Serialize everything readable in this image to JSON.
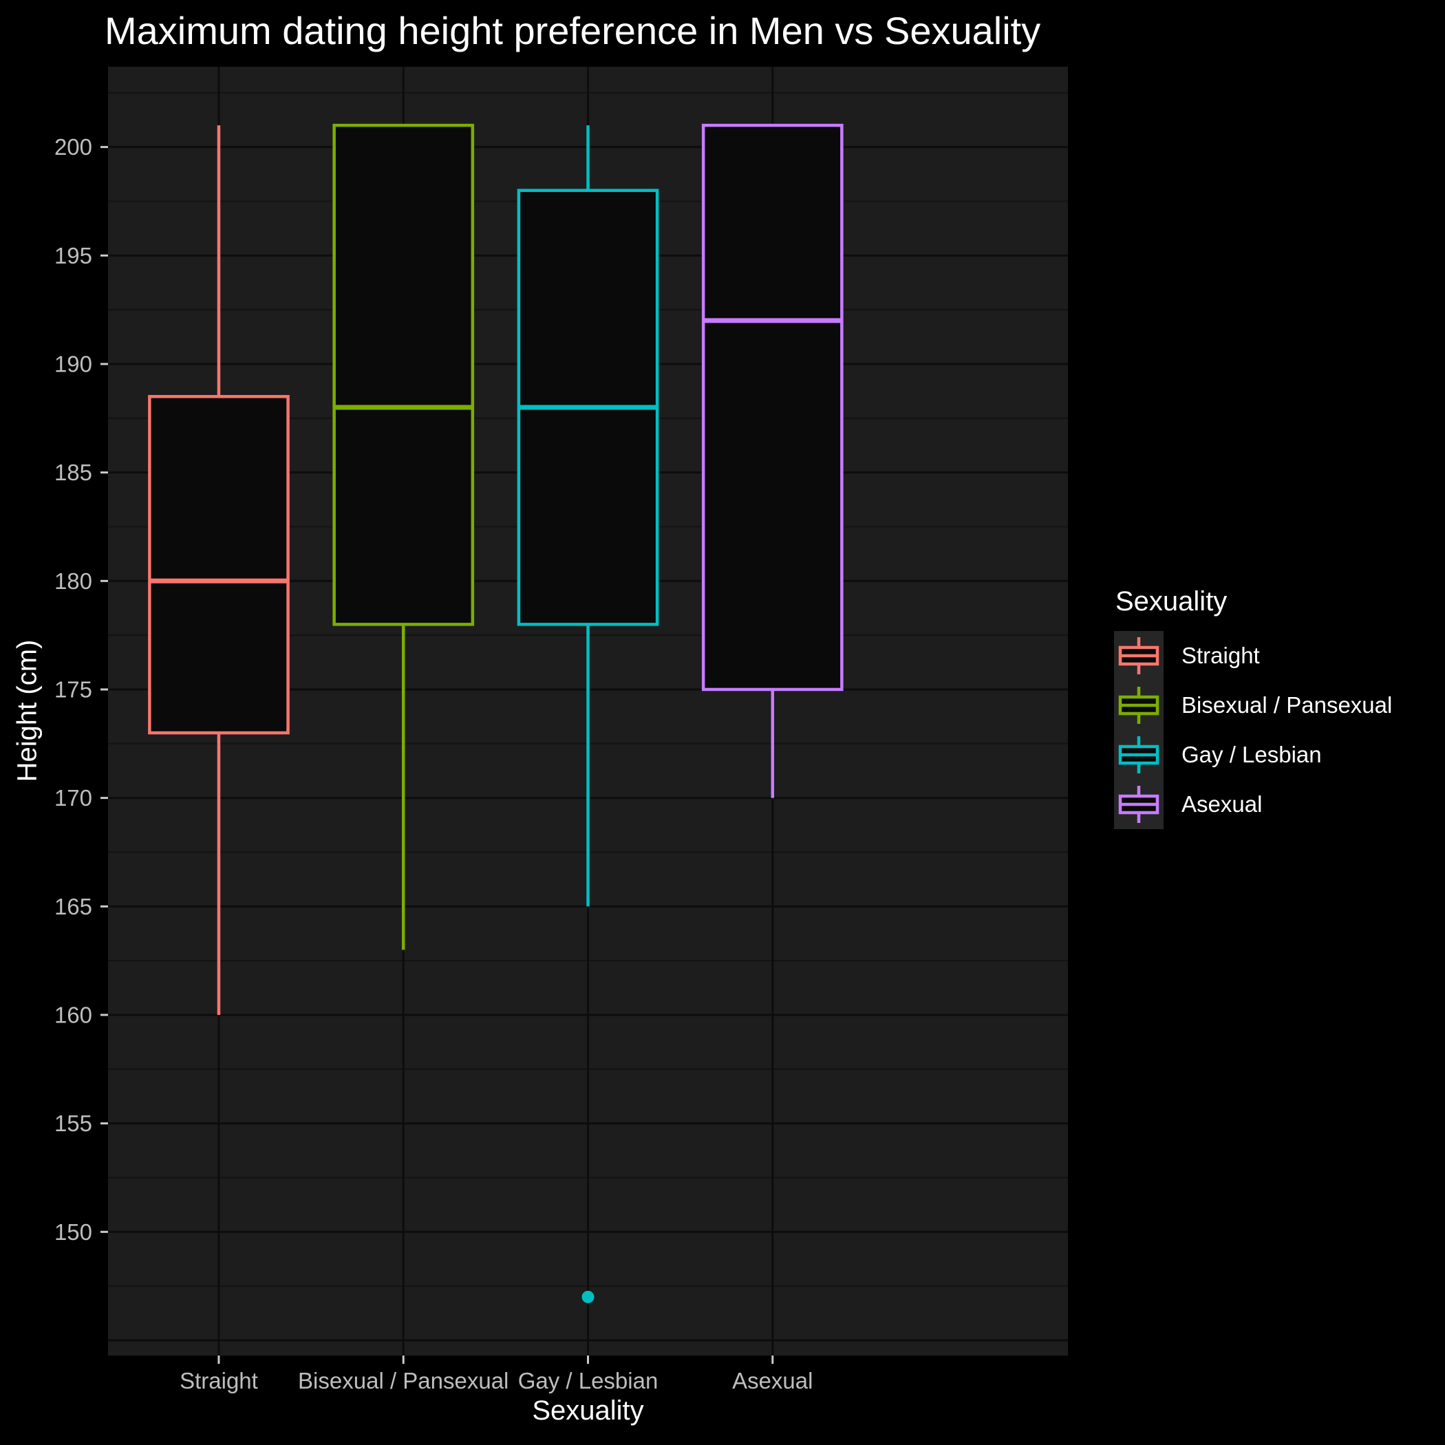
{
  "title": "Maximum dating height preference in Men vs Sexuality",
  "axes": {
    "x": {
      "title": "Sexuality",
      "categories": [
        "Straight",
        "Bisexual / Pansexual",
        "Gay / Lesbian",
        "Asexual"
      ]
    },
    "y": {
      "title": "Height (cm)",
      "ticks": [
        150,
        155,
        160,
        165,
        170,
        175,
        180,
        185,
        190,
        195,
        200
      ],
      "minor_step": 2.5
    }
  },
  "legend": {
    "title": "Sexuality",
    "position": "right"
  },
  "colors": {
    "background": "#000000",
    "panel": "#1D1D1D",
    "grid_major": "#0D0D0D",
    "grid_minor": "#131313",
    "box_fill": "#0A0A0A",
    "axis_text": "#BEBEBE",
    "tick_mark": "#CCCCCC",
    "text": "#FFFFFF",
    "legend_key_bg": "#262626"
  },
  "chart_data": {
    "type": "boxplot",
    "title": "Maximum dating height preference in Men vs Sexuality",
    "xlabel": "Sexuality",
    "ylabel": "Height (cm)",
    "ylim": [
      144.3,
      203.7
    ],
    "grid": true,
    "legend_position": "right",
    "categories": [
      "Straight",
      "Bisexual / Pansexual",
      "Gay / Lesbian",
      "Asexual"
    ],
    "series": [
      {
        "name": "Straight",
        "color": "#F8766D",
        "whisker_low": 160,
        "q1": 173,
        "median": 180,
        "q3": 188.5,
        "whisker_high": 201,
        "outliers": []
      },
      {
        "name": "Bisexual / Pansexual",
        "color": "#7CAE00",
        "whisker_low": 163,
        "q1": 178,
        "median": 188,
        "q3": 201,
        "whisker_high": 201,
        "outliers": []
      },
      {
        "name": "Gay / Lesbian",
        "color": "#00BFC4",
        "whisker_low": 165,
        "q1": 178,
        "median": 188,
        "q3": 198,
        "whisker_high": 201,
        "outliers": [
          147
        ]
      },
      {
        "name": "Asexual",
        "color": "#C77CFF",
        "whisker_low": 170,
        "q1": 175,
        "median": 192,
        "q3": 201,
        "whisker_high": 201,
        "outliers": []
      }
    ]
  }
}
